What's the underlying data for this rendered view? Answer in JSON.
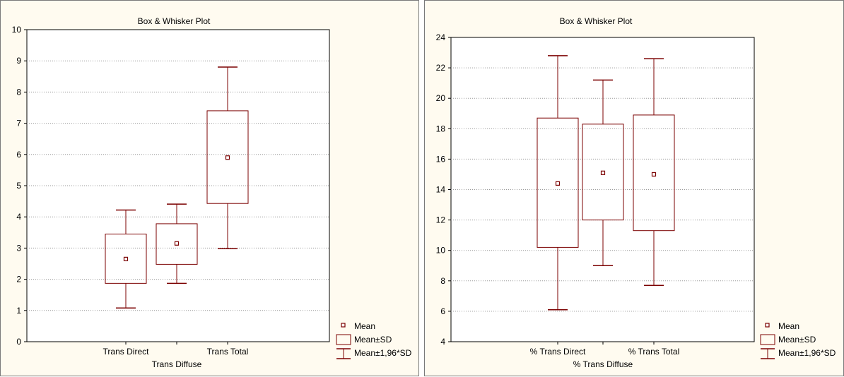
{
  "chart_data": [
    {
      "type": "box",
      "title": "Box & Whisker Plot",
      "xlabel": "",
      "ylabel": "",
      "ylim": [
        0,
        10
      ],
      "yticks": [
        0,
        1,
        2,
        3,
        4,
        5,
        6,
        7,
        8,
        9,
        10
      ],
      "grid": true,
      "categories": [
        "Trans Direct",
        "Trans Diffuse",
        "Trans Total"
      ],
      "tick_labels": [
        "Trans Direct",
        "Trans Total"
      ],
      "secondary_label": "Trans Diffuse",
      "series": [
        {
          "category": "Trans Direct",
          "mean": 2.65,
          "sd_low": 1.87,
          "sd_high": 3.45,
          "ci_low": 1.08,
          "ci_high": 4.22
        },
        {
          "category": "Trans Diffuse",
          "mean": 3.15,
          "sd_low": 2.48,
          "sd_high": 3.78,
          "ci_low": 1.87,
          "ci_high": 4.41
        },
        {
          "category": "Trans Total",
          "mean": 5.9,
          "sd_low": 4.43,
          "sd_high": 7.4,
          "ci_low": 2.98,
          "ci_high": 8.8
        }
      ],
      "legend": {
        "position": "bottom-right",
        "items": [
          {
            "symbol": "mean",
            "label": "Mean"
          },
          {
            "symbol": "box",
            "label": "Mean±SD"
          },
          {
            "symbol": "whisker",
            "label": "Mean±1,96*SD"
          }
        ]
      },
      "colors": {
        "series": "#7b0000",
        "background": "#fffbf0",
        "grid": "#9a9a9a"
      }
    },
    {
      "type": "box",
      "title": "Box & Whisker Plot",
      "xlabel": "",
      "ylabel": "",
      "ylim": [
        4,
        24
      ],
      "yticks": [
        4,
        6,
        8,
        10,
        12,
        14,
        16,
        18,
        20,
        22,
        24
      ],
      "grid": true,
      "categories": [
        "% Trans Direct",
        "% Trans Diffuse",
        "% Trans Total"
      ],
      "tick_labels": [
        "% Trans Direct",
        "% Trans Total"
      ],
      "secondary_label": "% Trans Diffuse",
      "series": [
        {
          "category": "% Trans Direct",
          "mean": 14.4,
          "sd_low": 10.2,
          "sd_high": 18.7,
          "ci_low": 6.1,
          "ci_high": 22.8
        },
        {
          "category": "% Trans Diffuse",
          "mean": 15.1,
          "sd_low": 12.0,
          "sd_high": 18.3,
          "ci_low": 9.0,
          "ci_high": 21.2
        },
        {
          "category": "% Trans Total",
          "mean": 15.0,
          "sd_low": 11.3,
          "sd_high": 18.9,
          "ci_low": 7.7,
          "ci_high": 22.6
        }
      ],
      "legend": {
        "position": "bottom-right",
        "items": [
          {
            "symbol": "mean",
            "label": "Mean"
          },
          {
            "symbol": "box",
            "label": "Mean±SD"
          },
          {
            "symbol": "whisker",
            "label": "Mean±1,96*SD"
          }
        ]
      },
      "colors": {
        "series": "#7b0000",
        "background": "#fffbf0",
        "grid": "#9a9a9a"
      }
    }
  ]
}
